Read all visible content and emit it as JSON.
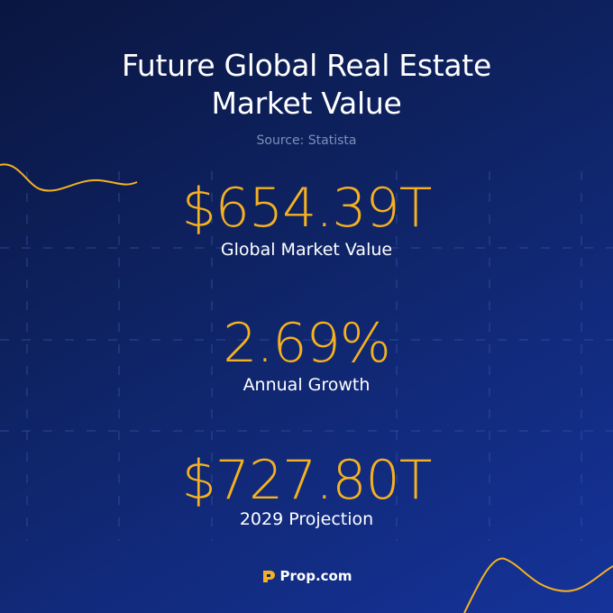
{
  "header": {
    "title": "Future Global Real Estate Market Value",
    "source": "Source: Statista"
  },
  "stats": [
    {
      "value": "$654.39T",
      "label": "Global Market Value"
    },
    {
      "value": "2.69%",
      "label": "Annual Growth"
    },
    {
      "value": "$727.80T",
      "label": "2029 Projection"
    }
  ],
  "footer": {
    "brand": "Prop.com"
  }
}
